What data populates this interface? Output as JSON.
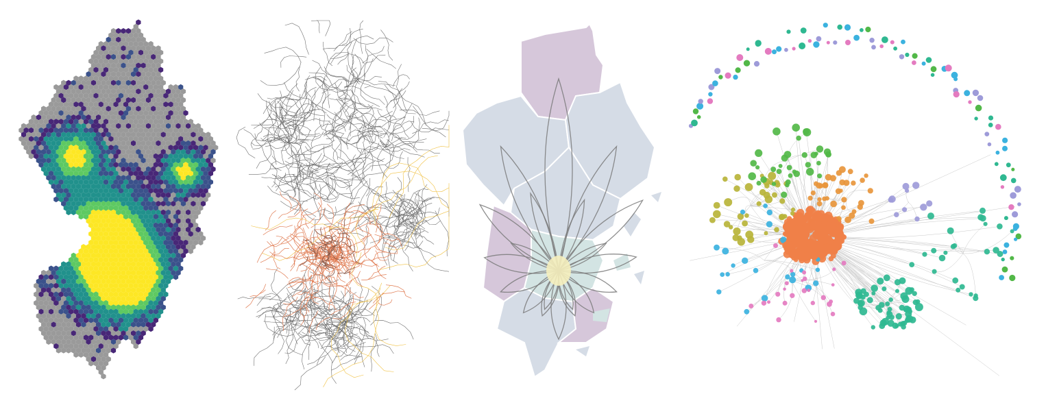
{
  "panels": [
    {
      "id": "hexbin-density-map",
      "kind": "hexbin-density"
    },
    {
      "id": "road-network-map",
      "kind": "line-network"
    },
    {
      "id": "flow-petal-map",
      "kind": "choropleth-flower"
    },
    {
      "id": "community-graph",
      "kind": "node-link-graph"
    }
  ],
  "colors": {
    "hex_empty": "#9a9a9a",
    "hex_scale": [
      "#482777",
      "#3b528b",
      "#21918c",
      "#5ec962",
      "#fde725"
    ],
    "road_gray": "#6e6e6e",
    "road_highlight": "#e07a50",
    "road_yellow": "#f0c040",
    "region_purple": "#d6c7da",
    "region_blue": "#d5dce6",
    "region_teal": "#d3e4e3",
    "petal_stroke": "#7a7a7a",
    "petal_core": "#f5eebc",
    "community": [
      "#f08048",
      "#2fb891",
      "#3bb2df",
      "#b8b43a",
      "#52b848",
      "#e47bc0",
      "#9e9bd9",
      "#e8963c"
    ],
    "edge": "#c8c8c8"
  }
}
